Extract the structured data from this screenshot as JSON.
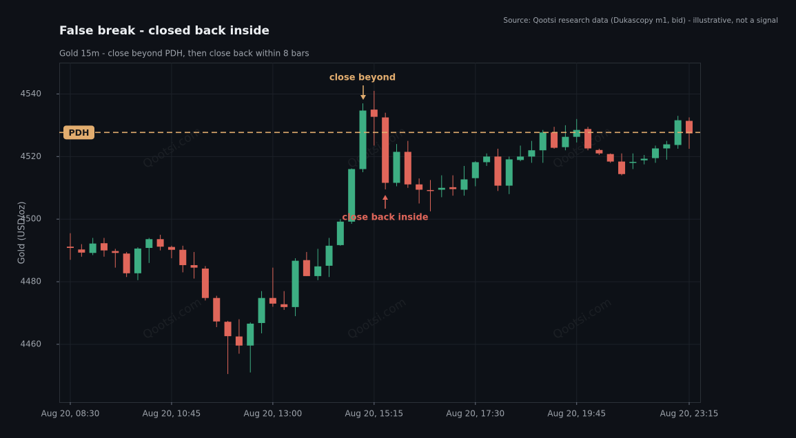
{
  "chart_data": {
    "type": "candlestick",
    "title": "False break - closed back inside",
    "subtitle": "Gold 15m - close beyond PDH, then close back within 8 bars",
    "source": "Source: Qootsi research data (Dukascopy m1, bid) - illustrative, not a signal",
    "y_label": "Gold (USD/oz)",
    "watermark": "Qootsi.com",
    "up_color": "#3dae83",
    "down_color": "#e0665a",
    "grid": true,
    "categories": [
      "Aug 20, 08:30",
      null,
      null,
      null,
      null,
      null,
      null,
      null,
      null,
      "Aug 20, 10:45",
      null,
      null,
      null,
      null,
      null,
      null,
      null,
      null,
      "Aug 20, 13:00",
      null,
      null,
      null,
      null,
      null,
      null,
      null,
      null,
      "Aug 20, 15:15",
      null,
      null,
      null,
      null,
      null,
      null,
      null,
      null,
      "Aug 20, 17:30",
      null,
      null,
      null,
      null,
      null,
      null,
      null,
      null,
      "Aug 20, 19:45",
      null,
      null,
      null,
      null,
      null,
      null,
      null,
      null,
      null,
      "Aug 20, 23:15"
    ],
    "open": [
      4491.2,
      4490.3,
      4489.2,
      4492.3,
      4489.8,
      4489.0,
      4482.7,
      4490.8,
      4493.6,
      4491.1,
      4490.2,
      4485.3,
      4484.2,
      4474.8,
      4467.2,
      4462.5,
      4459.6,
      4466.8,
      4474.8,
      4472.8,
      4471.9,
      4486.9,
      4481.8,
      4485.1,
      4491.7,
      4499.2,
      4516.0,
      4535.0,
      4532.5,
      4511.6,
      4521.5,
      4511.1,
      4509.3,
      4509.4,
      4510.2,
      4509.4,
      4513.1,
      4518.2,
      4520.0,
      4510.7,
      4518.9,
      4520.0,
      4522.0,
      4527.7,
      4523.0,
      4526.3,
      4528.8,
      4522.1,
      4520.8,
      4518.4,
      4518.1,
      4518.8,
      4519.5,
      4522.6,
      4523.7,
      4531.4
    ],
    "high": [
      4495.5,
      4492.0,
      4494.0,
      4494.0,
      4490.5,
      4489.5,
      4491.0,
      4494.0,
      4495.0,
      4491.5,
      4491.5,
      4489.5,
      4485.0,
      4475.5,
      4467.5,
      4468.0,
      4467.0,
      4477.0,
      4484.5,
      4477.0,
      4487.5,
      4489.5,
      4490.5,
      4494.0,
      4500.0,
      4516.2,
      4537.0,
      4541.0,
      4534.0,
      4524.0,
      4525.0,
      4513.0,
      4512.5,
      4514.0,
      4514.0,
      4517.0,
      4518.5,
      4521.0,
      4522.5,
      4520.0,
      4523.5,
      4525.0,
      4528.5,
      4529.5,
      4530.0,
      4532.0,
      4529.5,
      4522.5,
      4521.0,
      4521.0,
      4521.0,
      4520.5,
      4523.5,
      4525.0,
      4533.0,
      4532.5
    ],
    "low": [
      4487.0,
      4488.0,
      4488.5,
      4488.0,
      4484.5,
      4481.5,
      4480.5,
      4486.0,
      4490.0,
      4487.5,
      4483.0,
      4481.0,
      4474.0,
      4465.5,
      4450.5,
      4457.0,
      4451.0,
      4463.5,
      4472.0,
      4471.0,
      4469.0,
      4481.8,
      4480.5,
      4481.5,
      4491.5,
      4498.5,
      4515.0,
      4523.5,
      4509.5,
      4510.5,
      4510.0,
      4505.0,
      4502.5,
      4507.0,
      4507.5,
      4507.5,
      4510.5,
      4517.0,
      4509.0,
      4508.0,
      4518.5,
      4518.0,
      4518.0,
      4522.5,
      4522.0,
      4524.5,
      4522.0,
      4520.5,
      4518.0,
      4514.0,
      4516.0,
      4517.5,
      4518.0,
      4519.0,
      4522.5,
      4522.5
    ],
    "close": [
      4490.8,
      4489.3,
      4492.2,
      4490.0,
      4489.2,
      4482.7,
      4490.6,
      4493.6,
      4491.2,
      4490.2,
      4485.3,
      4484.5,
      4474.8,
      4467.3,
      4462.6,
      4459.6,
      4466.6,
      4474.8,
      4473.0,
      4471.9,
      4486.7,
      4481.8,
      4484.9,
      4491.5,
      4499.2,
      4516.0,
      4534.7,
      4532.7,
      4511.6,
      4521.5,
      4511.1,
      4509.4,
      4509.1,
      4510.0,
      4509.6,
      4512.7,
      4518.2,
      4520.0,
      4510.7,
      4519.1,
      4520.0,
      4522.0,
      4527.7,
      4522.8,
      4526.3,
      4528.5,
      4522.6,
      4521.0,
      4518.4,
      4514.4,
      4518.3,
      4519.3,
      4522.6,
      4523.9,
      4531.6,
      4527.4
    ],
    "level": {
      "label": "PDH",
      "value": 4527.7,
      "color": "#e2ad6f"
    },
    "annotations": [
      {
        "text": "close beyond",
        "color": "#e2ad6f"
      },
      {
        "text": "close back inside",
        "color": "#e0665a"
      }
    ],
    "ylim": [
      4441.5,
      4550
    ],
    "yticks": [
      4460,
      4480,
      4500,
      4520,
      4540
    ]
  }
}
